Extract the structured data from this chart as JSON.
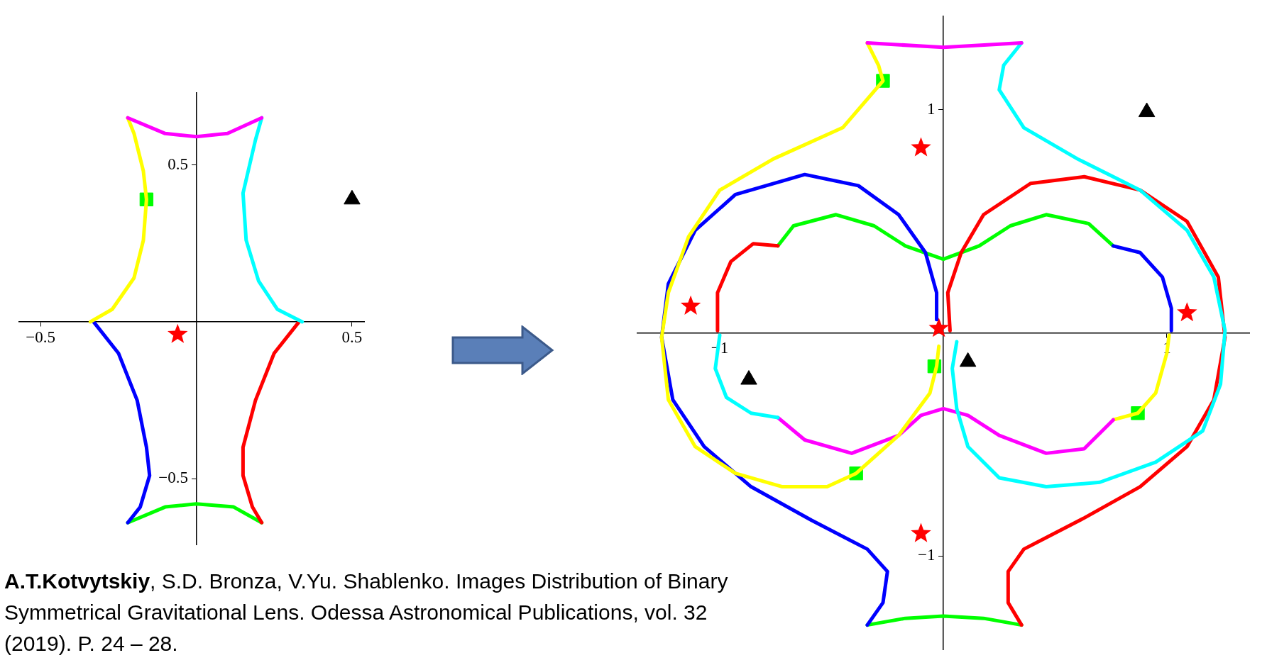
{
  "chart_data": [
    {
      "type": "line",
      "marker": "none",
      "xlim": [
        -0.57,
        0.54
      ],
      "ylim": [
        -0.71,
        0.73
      ],
      "xticks": [
        {
          "value": -0.5,
          "label": "−0.5"
        },
        0.5
      ],
      "yticks": [
        {
          "value": -0.5,
          "label": "−0.5"
        },
        0.5
      ],
      "annotations": [
        "A.T.Kotvytskiy, S.D. Bronza, V.Yu. Shablenko. Images Distribution of Binary Symmetrical Gravitational Lens. Odessa Astronomical Publications, vol. 32 (2019). P. 24 – 28."
      ],
      "series": [
        {
          "type": "line",
          "color": "#ff00ff",
          "x": [
            -0.22,
            -0.1,
            0,
            0.1,
            0.21
          ],
          "values": [
            0.65,
            0.6,
            0.59,
            0.6,
            0.65
          ]
        },
        {
          "type": "line",
          "color": "#ffff00",
          "x": [
            -0.22,
            -0.2,
            -0.17,
            -0.16,
            -0.17,
            -0.2,
            -0.27,
            -0.34
          ],
          "values": [
            0.65,
            0.6,
            0.48,
            0.39,
            0.26,
            0.14,
            0.04,
            0
          ]
        },
        {
          "type": "line",
          "color": "#00ffff",
          "x": [
            0.21,
            0.19,
            0.15,
            0.16,
            0.2,
            0.26,
            0.34
          ],
          "values": [
            0.65,
            0.58,
            0.41,
            0.26,
            0.13,
            0.04,
            0
          ]
        },
        {
          "type": "line",
          "color": "#0000ff",
          "x": [
            -0.33,
            -0.25,
            -0.19,
            -0.16,
            -0.15,
            -0.18,
            -0.22
          ],
          "values": [
            0,
            -0.1,
            -0.25,
            -0.4,
            -0.49,
            -0.59,
            -0.64
          ]
        },
        {
          "type": "line",
          "color": "#ff0000",
          "x": [
            0.33,
            0.25,
            0.19,
            0.15,
            0.15,
            0.18,
            0.21
          ],
          "values": [
            0,
            -0.1,
            -0.25,
            -0.4,
            -0.49,
            -0.59,
            -0.64
          ]
        },
        {
          "type": "line",
          "color": "#00ff00",
          "x": [
            -0.22,
            -0.1,
            0,
            0.12,
            0.21
          ],
          "values": [
            -0.64,
            -0.59,
            -0.58,
            -0.59,
            -0.64
          ]
        },
        {
          "type": "scatter",
          "marker": "square",
          "color": "#00ff00",
          "x": [
            -0.16
          ],
          "values": [
            0.39
          ]
        },
        {
          "type": "scatter",
          "marker": "triangle",
          "color": "#000000",
          "x": [
            0.5
          ],
          "values": [
            0.39
          ]
        },
        {
          "type": "scatter",
          "marker": "star",
          "color": "#ff0000",
          "x": [
            -0.06
          ],
          "values": [
            -0.04
          ]
        }
      ]
    },
    {
      "type": "line",
      "marker": "none",
      "xlim": [
        -1.37,
        1.37
      ],
      "ylim": [
        -1.42,
        1.42
      ],
      "xticks": [
        {
          "value": -1,
          "label": "−1"
        },
        1
      ],
      "yticks": [
        {
          "value": -1,
          "label": "−1"
        },
        1
      ],
      "series": [
        {
          "type": "line",
          "color": "#ff00ff",
          "x": [
            -0.34,
            0,
            0.35
          ],
          "values": [
            1.3,
            1.28,
            1.3
          ]
        },
        {
          "type": "line",
          "color": "#ffff00",
          "x": [
            -0.34,
            -0.29,
            -0.27,
            -0.45,
            -0.76,
            -1.0,
            -1.14,
            -1.23,
            -1.26,
            -1.23,
            -1.11,
            -0.93,
            -0.72,
            -0.52,
            -0.39,
            -0.2,
            -0.06,
            -0.03,
            -0.02
          ],
          "values": [
            1.3,
            1.2,
            1.13,
            0.92,
            0.78,
            0.64,
            0.43,
            0.18,
            -0.02,
            -0.3,
            -0.51,
            -0.63,
            -0.69,
            -0.69,
            -0.63,
            -0.46,
            -0.27,
            -0.15,
            -0.06
          ]
        },
        {
          "type": "line",
          "color": "#00ffff",
          "x": [
            0.35,
            0.27,
            0.25,
            0.36,
            0.6,
            0.88,
            1.09,
            1.21,
            1.26,
            1.24,
            1.16,
            0.95,
            0.7,
            0.46,
            0.25,
            0.11,
            0.06,
            0.04,
            0.06
          ],
          "values": [
            1.3,
            1.2,
            1.09,
            0.92,
            0.78,
            0.64,
            0.46,
            0.25,
            0.01,
            -0.23,
            -0.44,
            -0.58,
            -0.67,
            -0.69,
            -0.65,
            -0.51,
            -0.34,
            -0.16,
            -0.04
          ]
        },
        {
          "type": "line",
          "color": "#00ffff",
          "x": [
            -1.0,
            -1.02,
            -0.97,
            -0.86,
            -0.74
          ],
          "values": [
            -0.01,
            -0.16,
            -0.29,
            -0.36,
            -0.38
          ]
        },
        {
          "type": "line",
          "color": "#0000ff",
          "x": [
            -0.34,
            -0.27,
            -0.25,
            -0.34,
            -0.59,
            -0.86,
            -1.07,
            -1.21,
            -1.26,
            -1.23,
            -1.11,
            -0.93,
            -0.62,
            -0.38,
            -0.2,
            -0.08,
            -0.03,
            -0.03
          ],
          "values": [
            -1.31,
            -1.21,
            -1.07,
            -0.97,
            -0.84,
            -0.69,
            -0.51,
            -0.3,
            -0.02,
            0.22,
            0.46,
            0.62,
            0.71,
            0.66,
            0.53,
            0.36,
            0.18,
            0.06
          ]
        },
        {
          "type": "line",
          "color": "#0000ff",
          "x": [
            0.76,
            0.88,
            0.98,
            1.02,
            1.02
          ],
          "values": [
            0.39,
            0.36,
            0.25,
            0.11,
            0.01
          ]
        },
        {
          "type": "line",
          "color": "#ff0000",
          "x": [
            0.35,
            0.29,
            0.29,
            0.36,
            0.63,
            0.88,
            1.09,
            1.21,
            1.26,
            1.23,
            1.09,
            0.88,
            0.63,
            0.39,
            0.18,
            0.08,
            0.02,
            0.03
          ],
          "values": [
            -1.31,
            -1.21,
            -1.07,
            -0.97,
            -0.83,
            -0.69,
            -0.51,
            -0.3,
            -0.02,
            0.25,
            0.5,
            0.64,
            0.7,
            0.67,
            0.53,
            0.36,
            0.18,
            0.01
          ]
        },
        {
          "type": "line",
          "color": "#ff0000",
          "x": [
            -0.74,
            -0.85,
            -0.95,
            -1.01,
            -1.01
          ],
          "values": [
            0.39,
            0.4,
            0.32,
            0.18,
            0.01
          ]
        },
        {
          "type": "line",
          "color": "#00ff00",
          "x": [
            -0.74,
            -0.67,
            -0.48,
            -0.31,
            -0.17,
            0,
            0.16,
            0.3,
            0.46,
            0.65,
            0.76
          ],
          "values": [
            0.39,
            0.48,
            0.53,
            0.48,
            0.39,
            0.33,
            0.39,
            0.48,
            0.53,
            0.49,
            0.39
          ]
        },
        {
          "type": "line",
          "color": "#ff00ff",
          "x": [
            -0.74,
            -0.62,
            -0.41,
            -0.2,
            -0.1,
            0,
            0.11,
            0.25,
            0.46,
            0.63,
            0.76
          ],
          "values": [
            -0.38,
            -0.48,
            -0.54,
            -0.46,
            -0.37,
            -0.34,
            -0.37,
            -0.46,
            -0.54,
            -0.52,
            -0.39
          ]
        },
        {
          "type": "line",
          "color": "#ffff00",
          "x": [
            0.76,
            0.87,
            0.95,
            1.0,
            1.01
          ],
          "values": [
            -0.39,
            -0.36,
            -0.27,
            -0.09,
            -0.01
          ]
        },
        {
          "type": "line",
          "color": "#00ff00",
          "x": [
            -0.34,
            -0.17,
            0,
            0.18,
            0.35
          ],
          "values": [
            -1.31,
            -1.28,
            -1.27,
            -1.28,
            -1.31
          ]
        },
        {
          "type": "scatter",
          "marker": "square",
          "color": "#00ff00",
          "x": [
            -0.27,
            -0.04,
            -0.39,
            0.87
          ],
          "values": [
            1.13,
            -0.15,
            -0.63,
            -0.36
          ]
        },
        {
          "type": "scatter",
          "marker": "triangle",
          "color": "#000000",
          "x": [
            0.91,
            -0.87,
            0.11
          ],
          "values": [
            0.99,
            -0.21,
            -0.13
          ]
        },
        {
          "type": "scatter",
          "marker": "star",
          "color": "#ff0000",
          "x": [
            -0.1,
            -1.13,
            1.09,
            -0.02,
            -0.1
          ],
          "values": [
            0.83,
            0.12,
            0.09,
            0.02,
            -0.9
          ]
        }
      ]
    }
  ]
}
